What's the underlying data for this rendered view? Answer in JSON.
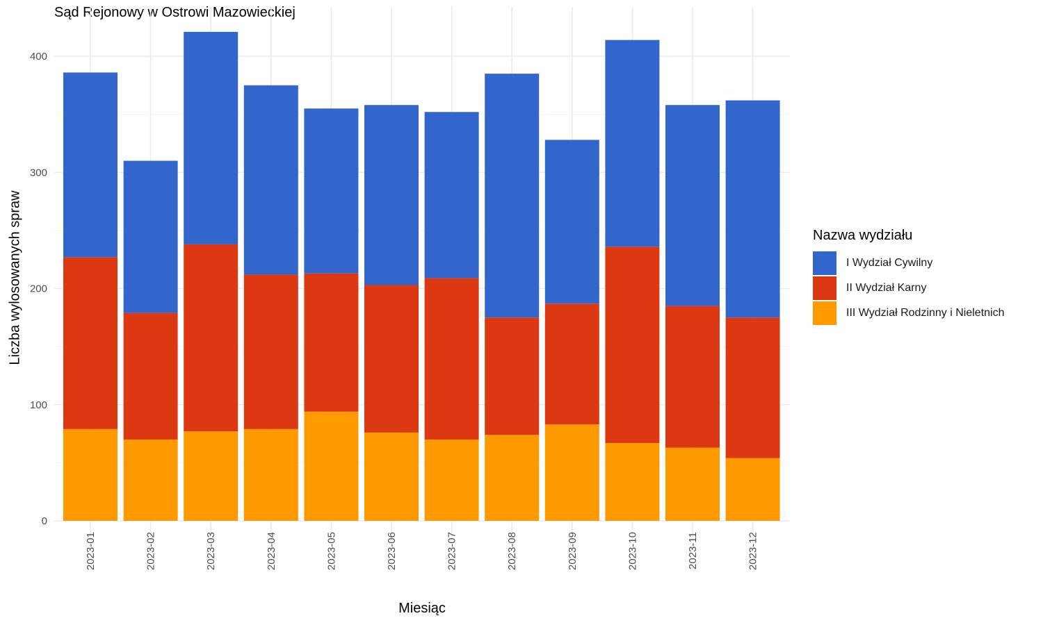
{
  "chart_data": {
    "type": "bar",
    "stacked": true,
    "title": "Sąd Rejonowy w Ostrowi Mazowieckiej",
    "xlabel": "Miesiąc",
    "ylabel": "Liczba wylosowanych spraw",
    "ylim": [
      0,
      420
    ],
    "yticks": [
      "0",
      "100",
      "200",
      "300",
      "400"
    ],
    "grid": true,
    "legend_position": "right",
    "legend_title": "Nazwa wydziału",
    "categories": [
      "2023-01",
      "2023-02",
      "2023-03",
      "2023-04",
      "2023-05",
      "2023-06",
      "2023-07",
      "2023-08",
      "2023-09",
      "2023-10",
      "2023-11",
      "2023-12"
    ],
    "series": [
      {
        "name": "III Wydział Rodzinny i Nieletnich",
        "color": "#FF9900",
        "values": [
          79,
          70,
          77,
          79,
          94,
          76,
          70,
          74,
          83,
          67,
          63,
          54
        ]
      },
      {
        "name": "II Wydział Karny",
        "color": "#DC3912",
        "values": [
          148,
          109,
          161,
          133,
          119,
          127,
          139,
          101,
          104,
          169,
          122,
          121
        ]
      },
      {
        "name": "I Wydział Cywilny",
        "color": "#3366CC",
        "values": [
          159,
          131,
          183,
          163,
          142,
          155,
          143,
          210,
          141,
          178,
          173,
          187
        ]
      }
    ],
    "legend_order": [
      "I Wydział Cywilny",
      "II Wydział Karny",
      "III Wydział Rodzinny i Nieletnich"
    ]
  }
}
